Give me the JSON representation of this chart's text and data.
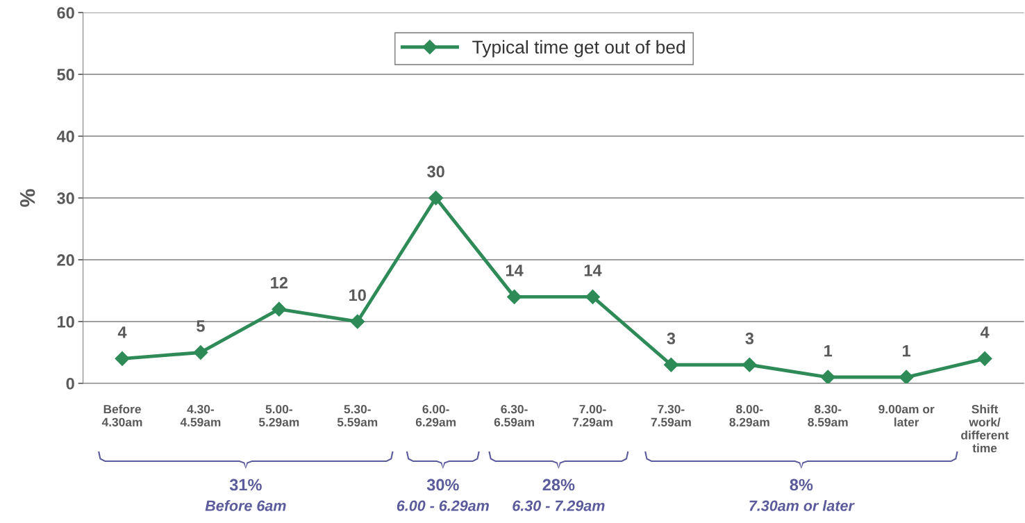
{
  "chart_data": {
    "type": "line",
    "ylabel": "%",
    "categories": [
      "Before\n4.30am",
      "4.30-\n4.59am",
      "5.00-\n5.29am",
      "5.30-\n5.59am",
      "6.00-\n6.29am",
      "6.30-\n6.59am",
      "7.00-\n7.29am",
      "7.30-\n7.59am",
      "8.00-\n8.29am",
      "8.30-\n8.59am",
      "9.00am or\nlater",
      "Shift\nwork/\ndifferent\ntime"
    ],
    "series": [
      {
        "name": "Typical time get out of bed",
        "color": "#2e8b57",
        "values": [
          4,
          5,
          12,
          10,
          30,
          14,
          14,
          3,
          3,
          1,
          1,
          4
        ]
      }
    ],
    "ylim": [
      0,
      60
    ],
    "yticks": [
      0,
      10,
      20,
      30,
      40,
      50,
      60
    ],
    "grid": "y",
    "legend": "top",
    "marker": "diamond",
    "line_style": "solid",
    "data_labels": true,
    "annotations": [
      "31%\nBefore 6am",
      "30%\n6.00 - 6.29am",
      "28%\n6.30 - 7.29am",
      "8%\n7.30am or later"
    ]
  }
}
